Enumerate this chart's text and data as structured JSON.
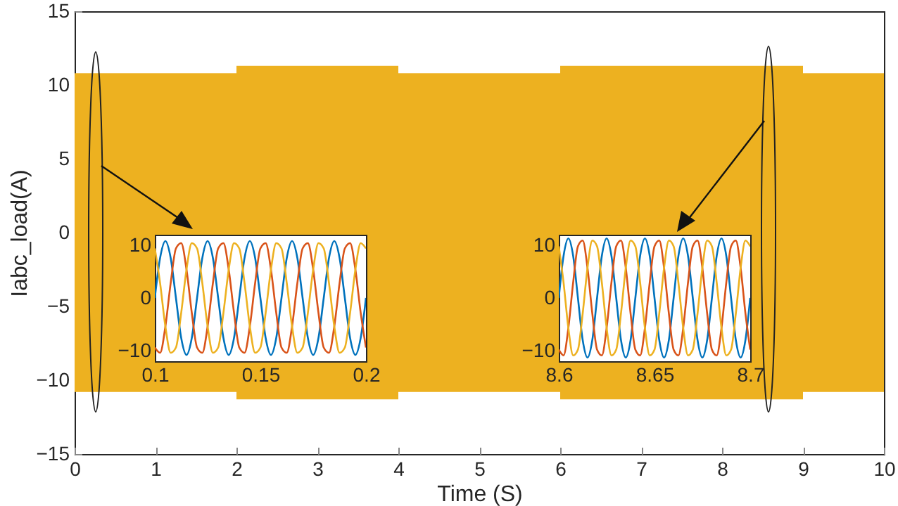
{
  "chart_data": [
    {
      "type": "area",
      "xlabel": "Time (S)",
      "ylabel": "Iabc_load(A)",
      "xlim": [
        0,
        10
      ],
      "ylim": [
        -15,
        15
      ],
      "xticks": [
        0,
        1,
        2,
        3,
        4,
        5,
        6,
        7,
        8,
        9,
        10
      ],
      "yticks": [
        -15,
        -10,
        -5,
        0,
        5,
        10,
        15
      ],
      "series": [
        {
          "color": "#edb120",
          "x": [
            0,
            2,
            2,
            4,
            4,
            6,
            6,
            9,
            9,
            10
          ],
          "values": [
            10.8,
            10.8,
            11.3,
            11.3,
            10.8,
            10.8,
            11.3,
            11.3,
            10.8,
            10.8
          ]
        },
        {
          "color": "#edb120",
          "x": [
            0,
            2,
            2,
            4,
            4,
            6,
            6,
            9,
            9,
            10
          ],
          "values": [
            -10.8,
            -10.8,
            -11.3,
            -11.3,
            -10.8,
            -10.8,
            -11.3,
            -11.3,
            -10.8,
            -10.8
          ]
        }
      ]
    },
    {
      "type": "line",
      "xlim": [
        0.1,
        0.2
      ],
      "ylim": [
        -12,
        12
      ],
      "xticks": [
        0.1,
        0.15,
        0.2
      ],
      "yticks": [
        -10,
        0,
        10
      ],
      "x": [
        0.1,
        0.1025,
        0.105,
        0.1075,
        0.11,
        0.1125,
        0.115,
        0.1175,
        0.12,
        0.1225,
        0.125,
        0.1275,
        0.13,
        0.1325,
        0.135,
        0.1375,
        0.14,
        0.1425,
        0.145,
        0.1475,
        0.15,
        0.1525,
        0.155,
        0.1575,
        0.16,
        0.1625,
        0.165,
        0.1675,
        0.17,
        0.1725,
        0.175,
        0.1775,
        0.18,
        0.1825,
        0.185,
        0.1875,
        0.19,
        0.1925,
        0.195,
        0.1975,
        0.2
      ],
      "series": [
        {
          "color": "#0072bd",
          "values": [
            0,
            7.6,
            10.8,
            7.6,
            0,
            -7.6,
            -10.8,
            -7.6,
            0,
            7.6,
            10.8,
            7.6,
            0,
            -7.6,
            -10.8,
            -7.6,
            0,
            7.6,
            10.8,
            7.6,
            0,
            -7.6,
            -10.8,
            -7.6,
            0,
            7.6,
            10.8,
            7.6,
            0,
            -7.6,
            -10.8,
            -7.6,
            0,
            7.6,
            10.8,
            7.6,
            0,
            -7.6,
            -10.8,
            -7.6,
            0
          ]
        },
        {
          "color": "#d95319",
          "values": [
            -9.4,
            -10.4,
            -5.4,
            2.8,
            9.4,
            10.4,
            5.4,
            -2.8,
            -9.4,
            -10.4,
            -5.4,
            2.8,
            9.4,
            10.4,
            5.4,
            -2.8,
            -9.4,
            -10.4,
            -5.4,
            2.8,
            9.4,
            10.4,
            5.4,
            -2.8,
            -9.4,
            -10.4,
            -5.4,
            2.8,
            9.4,
            10.4,
            5.4,
            -2.8,
            -9.4,
            -10.4,
            -5.4,
            2.8,
            9.4,
            10.4,
            5.4,
            -2.8,
            -9.4
          ]
        },
        {
          "color": "#edb120",
          "values": [
            9.4,
            2.8,
            -5.4,
            -10.4,
            -9.4,
            -2.8,
            5.4,
            10.4,
            9.4,
            2.8,
            -5.4,
            -10.4,
            -9.4,
            -2.8,
            5.4,
            10.4,
            9.4,
            2.8,
            -5.4,
            -10.4,
            -9.4,
            -2.8,
            5.4,
            10.4,
            9.4,
            2.8,
            -5.4,
            -10.4,
            -9.4,
            -2.8,
            5.4,
            10.4,
            9.4,
            2.8,
            -5.4,
            -10.4,
            -9.4,
            -2.8,
            5.4,
            10.4,
            9.4
          ]
        }
      ]
    },
    {
      "type": "line",
      "xlim": [
        8.6,
        8.7
      ],
      "ylim": [
        -12,
        12
      ],
      "xticks": [
        8.6,
        8.65,
        8.7
      ],
      "yticks": [
        -10,
        0,
        10
      ],
      "x": [
        8.6,
        8.6025,
        8.605,
        8.6075,
        8.61,
        8.6125,
        8.615,
        8.6175,
        8.62,
        8.6225,
        8.625,
        8.6275,
        8.63,
        8.6325,
        8.635,
        8.6375,
        8.64,
        8.6425,
        8.645,
        8.6475,
        8.65,
        8.6525,
        8.655,
        8.6575,
        8.66,
        8.6625,
        8.665,
        8.6675,
        8.67,
        8.6725,
        8.675,
        8.6775,
        8.68,
        8.6825,
        8.685,
        8.6875,
        8.69,
        8.6925,
        8.695,
        8.6975,
        8.7
      ],
      "series": [
        {
          "color": "#0072bd",
          "values": [
            0,
            8,
            11.3,
            8,
            0,
            -8,
            -11.3,
            -8,
            0,
            8,
            11.3,
            8,
            0,
            -8,
            -11.3,
            -8,
            0,
            8,
            11.3,
            8,
            0,
            -8,
            -11.3,
            -8,
            0,
            8,
            11.3,
            8,
            0,
            -8,
            -11.3,
            -8,
            0,
            8,
            11.3,
            8,
            0,
            -8,
            -11.3,
            -8,
            0
          ]
        },
        {
          "color": "#d95319",
          "values": [
            -9.8,
            -10.9,
            -5.7,
            2.9,
            9.8,
            10.9,
            5.7,
            -2.9,
            -9.8,
            -10.9,
            -5.7,
            2.9,
            9.8,
            10.9,
            5.7,
            -2.9,
            -9.8,
            -10.9,
            -5.7,
            2.9,
            9.8,
            10.9,
            5.7,
            -2.9,
            -9.8,
            -10.9,
            -5.7,
            2.9,
            9.8,
            10.9,
            5.7,
            -2.9,
            -9.8,
            -10.9,
            -5.7,
            2.9,
            9.8,
            10.9,
            5.7,
            -2.9,
            -9.8
          ]
        },
        {
          "color": "#edb120",
          "values": [
            9.8,
            2.9,
            -5.7,
            -10.9,
            -9.8,
            -2.9,
            5.7,
            10.9,
            9.8,
            2.9,
            -5.7,
            -10.9,
            -9.8,
            -2.9,
            5.7,
            10.9,
            9.8,
            2.9,
            -5.7,
            -10.9,
            -9.8,
            -2.9,
            5.7,
            10.9,
            9.8,
            2.9,
            -5.7,
            -10.9,
            -9.8,
            -2.9,
            5.7,
            10.9,
            9.8,
            2.9,
            -5.7,
            -10.9,
            -9.8,
            -2.9,
            5.7,
            10.9,
            9.8
          ]
        }
      ]
    }
  ]
}
